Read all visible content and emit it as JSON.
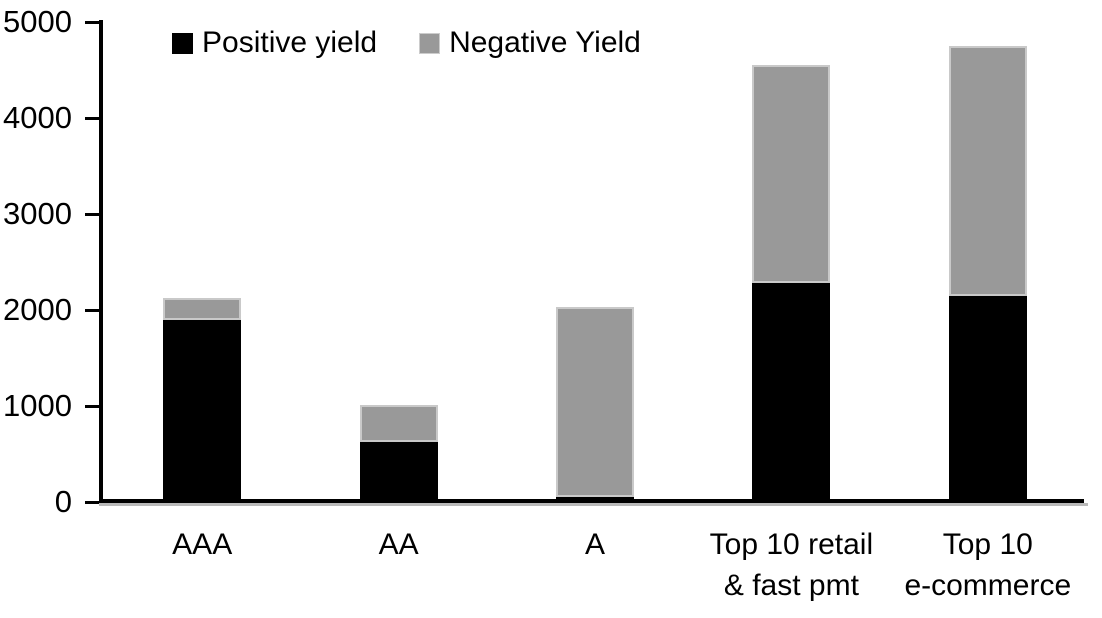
{
  "chart_data": {
    "type": "bar",
    "stacked": true,
    "title": "",
    "xlabel": "",
    "ylabel": "",
    "categories": [
      "AAA",
      "AA",
      "A",
      "Top 10 retail\n& fast pmt",
      "Top 10\ne-commerce"
    ],
    "series": [
      {
        "name": "Positive yield",
        "color": "#000000",
        "values": [
          1900,
          620,
          50,
          2280,
          2150
        ]
      },
      {
        "name": "Negative Yield",
        "color": "#999999",
        "values": [
          220,
          390,
          1980,
          2270,
          2600
        ]
      }
    ],
    "totals": [
      2120,
      1010,
      2030,
      4550,
      4750
    ],
    "ylim": [
      0,
      5000
    ],
    "yticks": [
      0,
      1000,
      2000,
      3000,
      4000,
      5000
    ],
    "legend_position": "top",
    "grid": false,
    "axis_color": "#000000",
    "background_color": "#ffffff"
  }
}
